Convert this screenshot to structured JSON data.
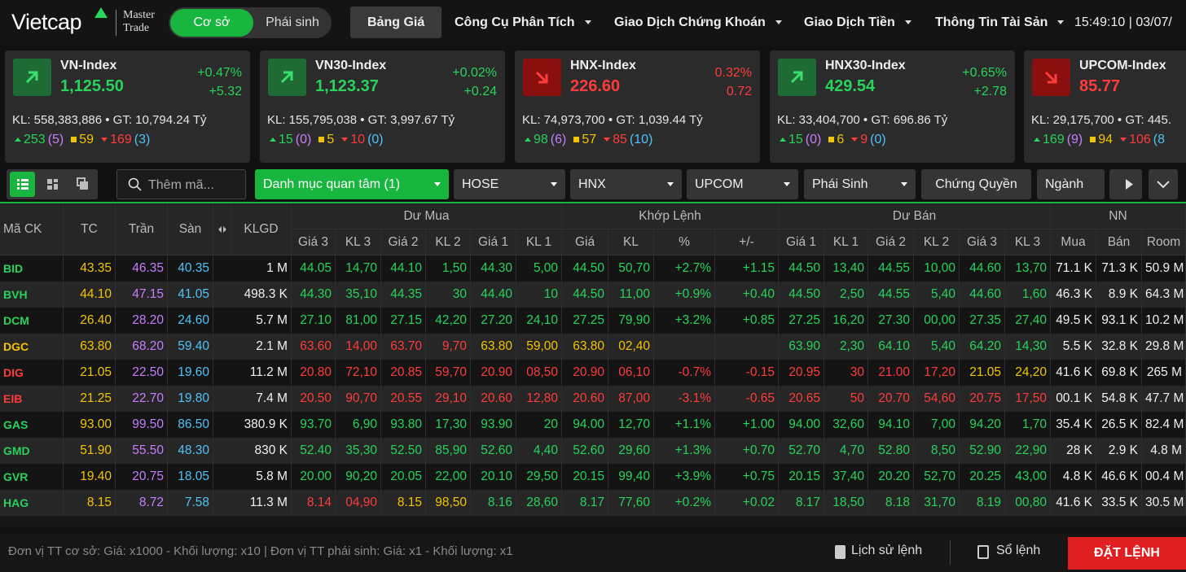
{
  "header": {
    "logo": "Vietcap",
    "brand_line1": "Master",
    "brand_line2": "Trade",
    "modes": [
      "Cơ sở",
      "Phái sinh"
    ],
    "nav": [
      "Bảng Giá",
      "Công Cụ Phân Tích",
      "Giao Dịch Chứng Khoán",
      "Giao Dịch Tiền",
      "Thông Tin Tài Sản"
    ],
    "clock": "15:49:10 | 03/07/"
  },
  "indices": [
    {
      "name": "VN-Index",
      "value": "1,125.50",
      "percent": "+0.47%",
      "change": "+5.32",
      "summary": "KL: 558,383,886 • GT: 10,794.24 Tỷ",
      "advances": "253",
      "ceiling": "(5)",
      "unchanged": "59",
      "declines": "169",
      "floor": "(3)",
      "trend": "up"
    },
    {
      "name": "VN30-Index",
      "value": "1,123.37",
      "percent": "+0.02%",
      "change": "+0.24",
      "summary": "KL: 155,795,038 • GT: 3,997.67 Tỷ",
      "advances": "15",
      "ceiling": "(0)",
      "unchanged": "5",
      "declines": "10",
      "floor": "(0)",
      "trend": "up"
    },
    {
      "name": "HNX-Index",
      "value": "226.60",
      "percent": "0.32%",
      "change": "0.72",
      "summary": "KL: 74,973,700 • GT: 1,039.44 Tỷ",
      "advances": "98",
      "ceiling": "(6)",
      "unchanged": "57",
      "declines": "85",
      "floor": "(10)",
      "trend": "down"
    },
    {
      "name": "HNX30-Index",
      "value": "429.54",
      "percent": "+0.65%",
      "change": "+2.78",
      "summary": "KL: 33,404,700 • GT: 696.86 Tỷ",
      "advances": "15",
      "ceiling": "(0)",
      "unchanged": "6",
      "declines": "9",
      "floor": "(0)",
      "trend": "up"
    },
    {
      "name": "UPCOM-Index",
      "value": "85.77",
      "summary": "KL: 29,175,700 • GT: 445.",
      "advances": "169",
      "ceiling": "(9)",
      "unchanged": "94",
      "declines": "106",
      "floor": "(8",
      "trend": "down"
    }
  ],
  "toolbar": {
    "search": "Thêm mã...",
    "tabs": [
      "Danh mục quan tâm (1)",
      "HOSE",
      "HNX",
      "UPCOM",
      "Phái Sinh",
      "Chứng Quyền",
      "Ngành"
    ]
  },
  "table": {
    "columns": [
      "Mã CK",
      "TC",
      "Trần",
      "Sàn",
      "KLGD"
    ],
    "groups": [
      "Dư Mua",
      "Khớp Lệnh",
      "Dư Bán",
      "NN"
    ],
    "subcolumns": [
      "Giá 3",
      "KL 3",
      "Giá 2",
      "KL 2",
      "Giá 1",
      "KL 1",
      "Giá",
      "KL",
      "%",
      "+/-",
      "Giá 1",
      "KL 1",
      "Giá 2",
      "KL 2",
      "Giá 3",
      "KL 3",
      "Mua",
      "Bán",
      "Room"
    ],
    "rows": [
      [
        "BID",
        "43.35",
        "46.35",
        "40.35",
        "1 M",
        "44.05",
        "14,70",
        "44.10",
        "1,50",
        "44.30",
        "5,00",
        "44.50",
        "50,70",
        "+2.7%",
        "+1.15",
        "44.50",
        "13,40",
        "44.55",
        "10,00",
        "44.60",
        "13,70",
        "71.1 K",
        "71.3 K",
        "50.9 M"
      ],
      [
        "BVH",
        "44.10",
        "47.15",
        "41.05",
        "498.3 K",
        "44.30",
        "35,10",
        "44.35",
        "30",
        "44.40",
        "10",
        "44.50",
        "11,00",
        "+0.9%",
        "+0.40",
        "44.50",
        "2,50",
        "44.55",
        "5,40",
        "44.60",
        "1,60",
        "46.3 K",
        "8.9 K",
        "64.3 M"
      ],
      [
        "DCM",
        "26.40",
        "28.20",
        "24.60",
        "5.7 M",
        "27.10",
        "81,00",
        "27.15",
        "42,20",
        "27.20",
        "24,10",
        "27.25",
        "79,90",
        "+3.2%",
        "+0.85",
        "27.25",
        "16,20",
        "27.30",
        "00,00",
        "27.35",
        "27,40",
        "49.5 K",
        "93.1 K",
        "10.2 M"
      ],
      [
        "DGC",
        "63.80",
        "68.20",
        "59.40",
        "2.1 M",
        "63.60",
        "14,00",
        "63.70",
        "9,70",
        "63.80",
        "59,00",
        "63.80",
        "02,40",
        "",
        "",
        "63.90",
        "2,30",
        "64.10",
        "5,40",
        "64.20",
        "14,30",
        "5.5 K",
        "32.8 K",
        "29.8 M"
      ],
      [
        "DIG",
        "21.05",
        "22.50",
        "19.60",
        "11.2 M",
        "20.80",
        "72,10",
        "20.85",
        "59,70",
        "20.90",
        "08,50",
        "20.90",
        "06,10",
        "-0.7%",
        "-0.15",
        "20.95",
        "30",
        "21.00",
        "17,20",
        "21.05",
        "24,20",
        "41.6 K",
        "69.8 K",
        "265 M"
      ],
      [
        "EIB",
        "21.25",
        "22.70",
        "19.80",
        "7.4 M",
        "20.50",
        "90,70",
        "20.55",
        "29,10",
        "20.60",
        "12,80",
        "20.60",
        "87,00",
        "-3.1%",
        "-0.65",
        "20.65",
        "50",
        "20.70",
        "54,60",
        "20.75",
        "17,50",
        "00.1 K",
        "54.8 K",
        "47.7 M"
      ],
      [
        "GAS",
        "93.00",
        "99.50",
        "86.50",
        "380.9 K",
        "93.70",
        "6,90",
        "93.80",
        "17,30",
        "93.90",
        "20",
        "94.00",
        "12,70",
        "+1.1%",
        "+1.00",
        "94.00",
        "32,60",
        "94.10",
        "7,00",
        "94.20",
        "1,70",
        "35.4 K",
        "26.5 K",
        "82.4 M"
      ],
      [
        "GMD",
        "51.90",
        "55.50",
        "48.30",
        "830 K",
        "52.40",
        "35,30",
        "52.50",
        "85,90",
        "52.60",
        "4,40",
        "52.60",
        "29,60",
        "+1.3%",
        "+0.70",
        "52.70",
        "4,70",
        "52.80",
        "8,50",
        "52.90",
        "22,90",
        "28 K",
        "2.9 K",
        "4.8 M"
      ],
      [
        "GVR",
        "19.40",
        "20.75",
        "18.05",
        "5.8 M",
        "20.00",
        "90,20",
        "20.05",
        "22,00",
        "20.10",
        "29,50",
        "20.15",
        "99,40",
        "+3.9%",
        "+0.75",
        "20.15",
        "37,40",
        "20.20",
        "52,70",
        "20.25",
        "43,00",
        "4.8 K",
        "46.6 K",
        "00.4 M"
      ],
      [
        "HAG",
        "8.15",
        "8.72",
        "7.58",
        "11.3 M",
        "8.14",
        "04,90",
        "8.15",
        "98,50",
        "8.16",
        "28,60",
        "8.17",
        "77,60",
        "+0.2%",
        "+0.02",
        "8.17",
        "18,50",
        "8.18",
        "31,70",
        "8.19",
        "00,80",
        "41.6 K",
        "33.5 K",
        "30.5 M"
      ]
    ]
  },
  "footer": {
    "note": "Đơn vị TT cơ sở: Giá: x1000 - Khối lượng: x10 | Đơn vị TT phái sinh: Giá: x1 - Khối lượng: x1",
    "history": "Lịch sử lệnh",
    "orders": "Sổ lệnh",
    "place_order": "ĐẶT LỆNH"
  }
}
